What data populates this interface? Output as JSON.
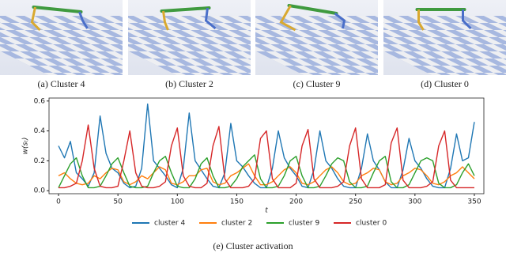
{
  "panels": [
    {
      "caption": "(a) Cluster 4"
    },
    {
      "caption": "(b) Cluster 2"
    },
    {
      "caption": "(c) Cluster 9"
    },
    {
      "caption": "(d) Cluster 0"
    }
  ],
  "caption": "(e) Cluster activation",
  "chart_data": {
    "type": "line",
    "xlabel": "t",
    "ylabel": "w(sₜ)",
    "x": [
      0,
      5,
      10,
      15,
      20,
      25,
      30,
      35,
      40,
      45,
      50,
      55,
      60,
      65,
      70,
      75,
      80,
      85,
      90,
      95,
      100,
      105,
      110,
      115,
      120,
      125,
      130,
      135,
      140,
      145,
      150,
      155,
      160,
      165,
      170,
      175,
      180,
      185,
      190,
      195,
      200,
      205,
      210,
      215,
      220,
      225,
      230,
      235,
      240,
      245,
      250,
      255,
      260,
      265,
      270,
      275,
      280,
      285,
      290,
      295,
      300,
      305,
      310,
      315,
      320,
      325,
      330,
      335,
      340,
      345,
      350
    ],
    "series": [
      {
        "name": "cluster 4",
        "color": "#1f77b4",
        "values": [
          0.3,
          0.22,
          0.33,
          0.12,
          0.08,
          0.03,
          0.12,
          0.5,
          0.25,
          0.15,
          0.12,
          0.05,
          0.02,
          0.03,
          0.15,
          0.58,
          0.2,
          0.15,
          0.1,
          0.04,
          0.02,
          0.15,
          0.52,
          0.2,
          0.14,
          0.08,
          0.03,
          0.02,
          0.12,
          0.45,
          0.2,
          0.16,
          0.1,
          0.05,
          0.02,
          0.02,
          0.15,
          0.4,
          0.22,
          0.15,
          0.1,
          0.03,
          0.02,
          0.14,
          0.4,
          0.2,
          0.15,
          0.08,
          0.03,
          0.02,
          0.02,
          0.15,
          0.38,
          0.2,
          0.14,
          0.06,
          0.02,
          0.02,
          0.14,
          0.35,
          0.2,
          0.15,
          0.08,
          0.03,
          0.02,
          0.02,
          0.15,
          0.38,
          0.2,
          0.22,
          0.46
        ]
      },
      {
        "name": "cluster 2",
        "color": "#ff7f0e",
        "values": [
          0.1,
          0.12,
          0.08,
          0.05,
          0.04,
          0.05,
          0.1,
          0.08,
          0.12,
          0.15,
          0.14,
          0.06,
          0.04,
          0.06,
          0.1,
          0.08,
          0.12,
          0.16,
          0.14,
          0.05,
          0.04,
          0.06,
          0.1,
          0.1,
          0.14,
          0.15,
          0.06,
          0.04,
          0.05,
          0.1,
          0.12,
          0.15,
          0.18,
          0.1,
          0.04,
          0.04,
          0.06,
          0.1,
          0.14,
          0.16,
          0.12,
          0.05,
          0.04,
          0.06,
          0.1,
          0.14,
          0.16,
          0.12,
          0.06,
          0.04,
          0.05,
          0.1,
          0.12,
          0.15,
          0.14,
          0.06,
          0.04,
          0.05,
          0.1,
          0.12,
          0.15,
          0.14,
          0.1,
          0.05,
          0.04,
          0.06,
          0.1,
          0.12,
          0.16,
          0.12,
          0.08
        ]
      },
      {
        "name": "cluster 9",
        "color": "#2ca02c",
        "values": [
          0.02,
          0.1,
          0.18,
          0.22,
          0.1,
          0.02,
          0.02,
          0.03,
          0.1,
          0.18,
          0.22,
          0.12,
          0.03,
          0.02,
          0.02,
          0.03,
          0.12,
          0.2,
          0.23,
          0.12,
          0.03,
          0.02,
          0.02,
          0.08,
          0.18,
          0.22,
          0.1,
          0.02,
          0.02,
          0.03,
          0.08,
          0.16,
          0.2,
          0.24,
          0.08,
          0.02,
          0.02,
          0.03,
          0.1,
          0.2,
          0.23,
          0.1,
          0.02,
          0.02,
          0.03,
          0.1,
          0.18,
          0.22,
          0.2,
          0.06,
          0.02,
          0.02,
          0.03,
          0.12,
          0.2,
          0.23,
          0.06,
          0.02,
          0.02,
          0.04,
          0.12,
          0.2,
          0.22,
          0.2,
          0.05,
          0.02,
          0.02,
          0.04,
          0.12,
          0.18,
          0.1
        ]
      },
      {
        "name": "cluster 0",
        "color": "#d62728",
        "values": [
          0.02,
          0.02,
          0.03,
          0.05,
          0.2,
          0.44,
          0.15,
          0.03,
          0.02,
          0.02,
          0.03,
          0.2,
          0.4,
          0.12,
          0.03,
          0.02,
          0.02,
          0.03,
          0.06,
          0.3,
          0.42,
          0.1,
          0.03,
          0.02,
          0.02,
          0.05,
          0.3,
          0.43,
          0.08,
          0.02,
          0.02,
          0.02,
          0.03,
          0.08,
          0.35,
          0.4,
          0.08,
          0.02,
          0.02,
          0.02,
          0.05,
          0.3,
          0.41,
          0.08,
          0.02,
          0.02,
          0.02,
          0.03,
          0.06,
          0.3,
          0.42,
          0.08,
          0.02,
          0.02,
          0.02,
          0.04,
          0.32,
          0.42,
          0.07,
          0.02,
          0.02,
          0.02,
          0.03,
          0.06,
          0.3,
          0.4,
          0.07,
          0.02,
          0.02,
          0.02,
          0.02
        ]
      }
    ],
    "xlim": [
      -8,
      358
    ],
    "ylim": [
      -0.02,
      0.62
    ],
    "xticks": [
      0,
      50,
      100,
      150,
      200,
      250,
      300,
      350
    ],
    "yticks": [
      {
        "value": 0,
        "label": "0.0"
      },
      0.2,
      0.4,
      0.6
    ],
    "legend": "bottom"
  }
}
